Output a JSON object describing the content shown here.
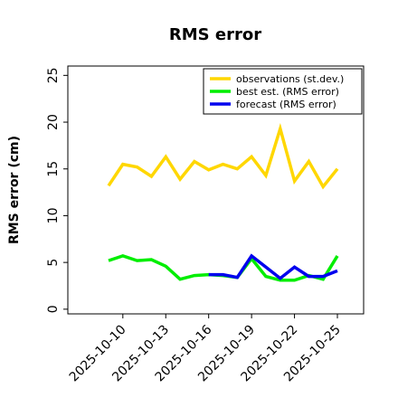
{
  "chart_data": {
    "type": "line",
    "title": "RMS error",
    "ylabel": "RMS error (cm)",
    "xlabel": "",
    "ylim": [
      -0.5,
      26
    ],
    "yticks": [
      0,
      5,
      10,
      15,
      20,
      25
    ],
    "ytick_labels": [
      "0",
      "5",
      "10",
      "15",
      "20",
      "25"
    ],
    "x_start_date": "2025-10-09",
    "x_end_date": "2025-10-25",
    "xticks": [
      "2025-10-10",
      "2025-10-13",
      "2025-10-16",
      "2025-10-19",
      "2025-10-22",
      "2025-10-25"
    ],
    "xtick_labels": [
      "2025-10-10",
      "2025-10-13",
      "2025-10-16",
      "2025-10-19",
      "2025-10-22",
      "2025-10-25"
    ],
    "highlighted_xtick": "2025-10-16",
    "highlight_color": "#228b22",
    "legend_position": "top-right",
    "grid": false,
    "series": [
      {
        "name": "observations (st.dev.)",
        "color": "#ffd700",
        "x": [
          "2025-10-09",
          "2025-10-10",
          "2025-10-11",
          "2025-10-12",
          "2025-10-13",
          "2025-10-14",
          "2025-10-15",
          "2025-10-16",
          "2025-10-17",
          "2025-10-18",
          "2025-10-19",
          "2025-10-20",
          "2025-10-21",
          "2025-10-22",
          "2025-10-23",
          "2025-10-24",
          "2025-10-25"
        ],
        "values": [
          13.2,
          15.5,
          15.2,
          14.2,
          16.3,
          13.9,
          15.8,
          14.9,
          15.5,
          15.0,
          16.3,
          14.3,
          19.3,
          13.7,
          15.8,
          13.1,
          15.0
        ]
      },
      {
        "name": "best est. (RMS error)",
        "color": "#00ee00",
        "x": [
          "2025-10-09",
          "2025-10-10",
          "2025-10-11",
          "2025-10-12",
          "2025-10-13",
          "2025-10-14",
          "2025-10-15",
          "2025-10-16",
          "2025-10-17",
          "2025-10-18",
          "2025-10-19",
          "2025-10-20",
          "2025-10-21",
          "2025-10-22",
          "2025-10-23",
          "2025-10-24",
          "2025-10-25"
        ],
        "values": [
          5.2,
          5.7,
          5.2,
          5.3,
          4.6,
          3.2,
          3.6,
          3.7,
          3.6,
          3.4,
          5.4,
          3.5,
          3.1,
          3.1,
          3.6,
          3.2,
          5.7
        ]
      },
      {
        "name": "forecast (RMS error)",
        "color": "#0000ee",
        "x": [
          "2025-10-16",
          "2025-10-17",
          "2025-10-18",
          "2025-10-19",
          "2025-10-20",
          "2025-10-21",
          "2025-10-22",
          "2025-10-23",
          "2025-10-24",
          "2025-10-25"
        ],
        "values": [
          3.7,
          3.7,
          3.4,
          5.7,
          4.5,
          3.3,
          4.5,
          3.5,
          3.5,
          4.1
        ]
      }
    ]
  }
}
